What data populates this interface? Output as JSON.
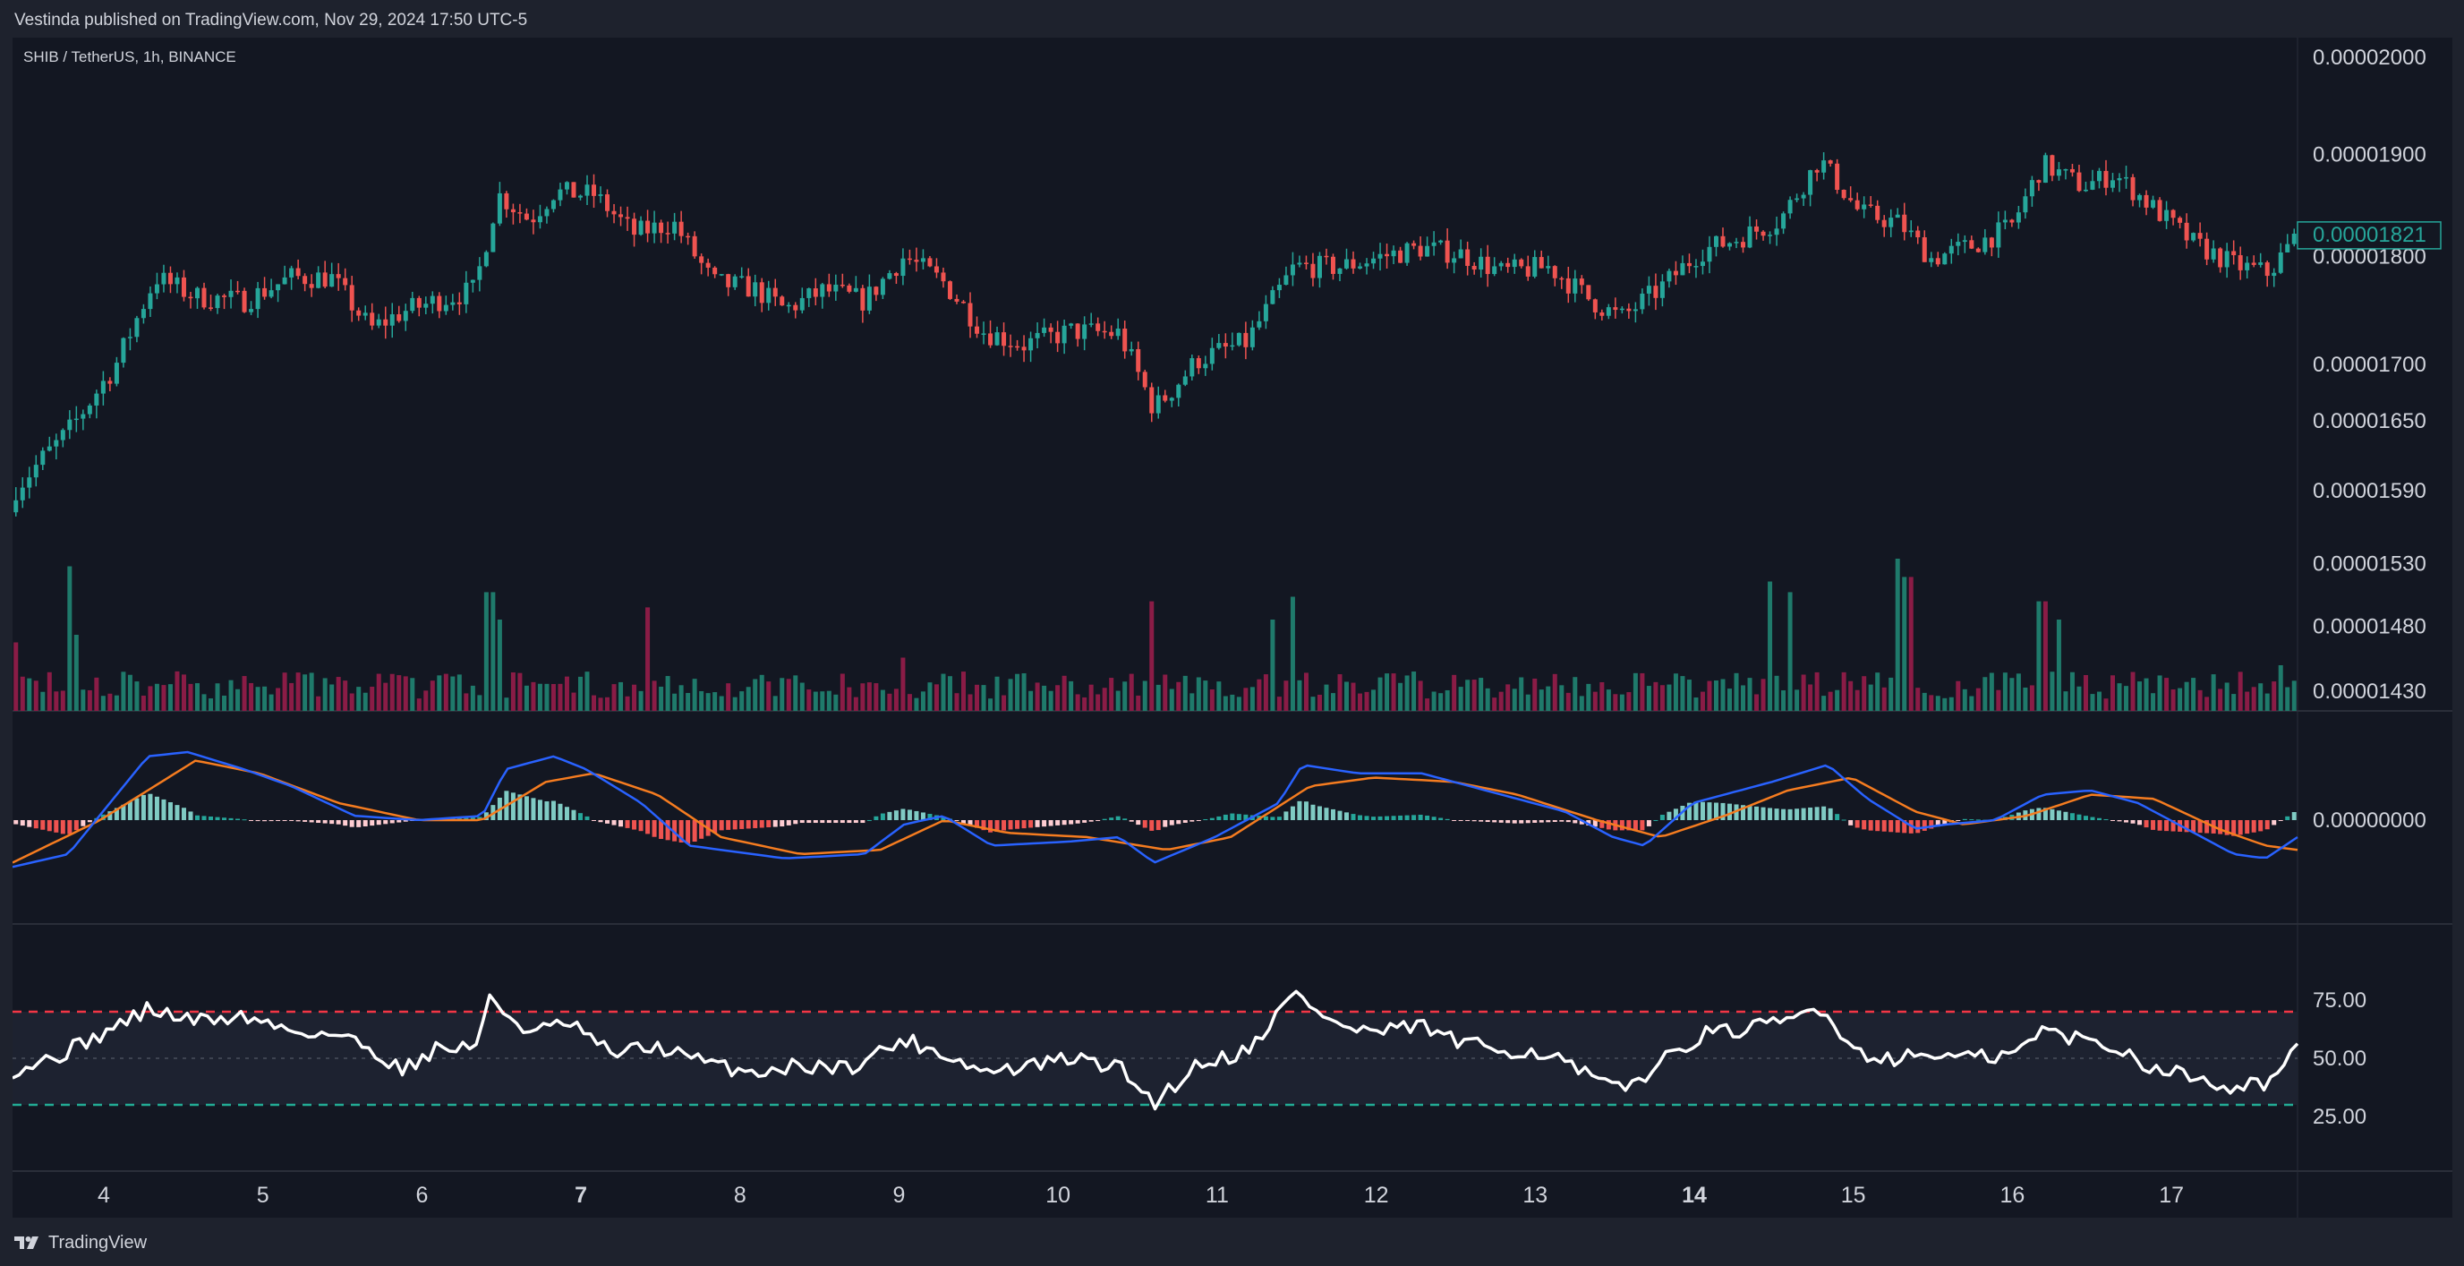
{
  "header": {
    "published": "Vestinda published on TradingView.com, Nov 29, 2024 17:50 UTC-5"
  },
  "symbol_label": "SHIB / TetherUS, 1h, BINANCE",
  "footer": {
    "brand": "TradingView"
  },
  "colors": {
    "up": "#26a69a",
    "down": "#ef5350",
    "vol_up": "#1f7a6b",
    "vol_down": "#8a1c46",
    "macd": "#2962ff",
    "signal": "#f57c20",
    "rsi": "#ffffff",
    "rsi_upper": "#f23645",
    "rsi_lower": "#22ab94"
  },
  "chart_data": [
    {
      "type": "candlestick",
      "x_ticks": [
        {
          "label": "4",
          "bold": false
        },
        {
          "label": "5",
          "bold": false
        },
        {
          "label": "6",
          "bold": false
        },
        {
          "label": "7",
          "bold": true
        },
        {
          "label": "8",
          "bold": false
        },
        {
          "label": "9",
          "bold": false
        },
        {
          "label": "10",
          "bold": false
        },
        {
          "label": "11",
          "bold": false
        },
        {
          "label": "12",
          "bold": false
        },
        {
          "label": "13",
          "bold": false
        },
        {
          "label": "14",
          "bold": true
        },
        {
          "label": "15",
          "bold": false
        },
        {
          "label": "16",
          "bold": false
        },
        {
          "label": "17",
          "bold": false
        }
      ],
      "x_range_days": [
        3.45,
        17.8
      ],
      "price_ticks": [
        {
          "label": "0.00002000",
          "value": 2e-05
        },
        {
          "label": "0.00001900",
          "value": 1.9e-05
        },
        {
          "label": "0.00001800",
          "value": 1.8e-05
        },
        {
          "label": "0.00001700",
          "value": 1.7e-05
        },
        {
          "label": "0.00001650",
          "value": 1.65e-05
        },
        {
          "label": "0.00001590",
          "value": 1.59e-05
        },
        {
          "label": "0.00001530",
          "value": 1.53e-05
        },
        {
          "label": "0.00001480",
          "value": 1.48e-05
        },
        {
          "label": "0.00001430",
          "value": 1.43e-05
        }
      ],
      "last_price": {
        "label": "0.00001821",
        "value": 1.821e-05
      },
      "log_scale": true,
      "trend": [
        [
          3.45,
          1.59
        ],
        [
          3.8,
          1.64
        ],
        [
          4.1,
          1.7
        ],
        [
          4.35,
          1.78
        ],
        [
          4.6,
          1.762
        ],
        [
          4.9,
          1.758
        ],
        [
          5.2,
          1.78
        ],
        [
          5.45,
          1.78
        ],
        [
          5.7,
          1.732
        ],
        [
          5.9,
          1.748
        ],
        [
          6.15,
          1.76
        ],
        [
          6.35,
          1.768
        ],
        [
          6.5,
          1.86
        ],
        [
          6.7,
          1.835
        ],
        [
          6.85,
          1.862
        ],
        [
          7.1,
          1.86
        ],
        [
          7.35,
          1.822
        ],
        [
          7.6,
          1.832
        ],
        [
          7.85,
          1.775
        ],
        [
          8.1,
          1.77
        ],
        [
          8.3,
          1.75
        ],
        [
          8.55,
          1.768
        ],
        [
          8.8,
          1.758
        ],
        [
          9.05,
          1.8
        ],
        [
          9.3,
          1.775
        ],
        [
          9.55,
          1.73
        ],
        [
          9.8,
          1.718
        ],
        [
          10.1,
          1.73
        ],
        [
          10.4,
          1.728
        ],
        [
          10.62,
          1.66
        ],
        [
          10.9,
          1.705
        ],
        [
          11.2,
          1.72
        ],
        [
          11.5,
          1.79
        ],
        [
          11.8,
          1.79
        ],
        [
          12.05,
          1.8
        ],
        [
          12.3,
          1.808
        ],
        [
          12.55,
          1.802
        ],
        [
          12.8,
          1.785
        ],
        [
          13.1,
          1.79
        ],
        [
          13.35,
          1.76
        ],
        [
          13.55,
          1.742
        ],
        [
          13.8,
          1.77
        ],
        [
          14.05,
          1.805
        ],
        [
          14.3,
          1.818
        ],
        [
          14.55,
          1.835
        ],
        [
          14.8,
          1.895
        ],
        [
          15.05,
          1.842
        ],
        [
          15.3,
          1.832
        ],
        [
          15.5,
          1.798
        ],
        [
          15.75,
          1.81
        ],
        [
          16.0,
          1.828
        ],
        [
          16.2,
          1.89
        ],
        [
          16.45,
          1.868
        ],
        [
          16.65,
          1.88
        ],
        [
          16.9,
          1.846
        ],
        [
          17.15,
          1.812
        ],
        [
          17.4,
          1.792
        ],
        [
          17.62,
          1.784
        ],
        [
          17.8,
          1.821
        ]
      ],
      "notes": "price values are x1e-5"
    },
    {
      "type": "bar",
      "name": "volume",
      "spikes": [
        [
          3.45,
          0.45
        ],
        [
          3.8,
          0.95
        ],
        [
          3.85,
          0.5
        ],
        [
          6.45,
          0.78
        ],
        [
          6.5,
          0.6
        ],
        [
          7.45,
          0.68
        ],
        [
          9.05,
          0.35
        ],
        [
          10.6,
          0.72
        ],
        [
          11.35,
          0.6
        ],
        [
          11.5,
          0.75
        ],
        [
          14.5,
          0.85
        ],
        [
          14.6,
          0.78
        ],
        [
          15.3,
          1.0
        ],
        [
          15.35,
          0.88
        ],
        [
          16.2,
          0.72
        ],
        [
          16.3,
          0.6
        ],
        [
          17.7,
          0.3
        ]
      ]
    },
    {
      "type": "line",
      "name": "MACD",
      "y_ticks": [
        {
          "label": "0.00000000",
          "value": 0
        }
      ],
      "macd": [
        [
          3.45,
          -0.55
        ],
        [
          3.8,
          -0.4
        ],
        [
          4.3,
          0.75
        ],
        [
          4.55,
          0.8
        ],
        [
          4.9,
          0.6
        ],
        [
          5.2,
          0.4
        ],
        [
          5.6,
          0.05
        ],
        [
          6.0,
          0.0
        ],
        [
          6.4,
          0.05
        ],
        [
          6.55,
          0.6
        ],
        [
          6.85,
          0.75
        ],
        [
          7.05,
          0.6
        ],
        [
          7.4,
          0.2
        ],
        [
          7.7,
          -0.3
        ],
        [
          8.3,
          -0.45
        ],
        [
          8.8,
          -0.4
        ],
        [
          9.05,
          -0.05
        ],
        [
          9.3,
          0.05
        ],
        [
          9.6,
          -0.3
        ],
        [
          10.1,
          -0.25
        ],
        [
          10.4,
          -0.2
        ],
        [
          10.62,
          -0.5
        ],
        [
          11.0,
          -0.2
        ],
        [
          11.4,
          0.2
        ],
        [
          11.55,
          0.65
        ],
        [
          11.9,
          0.55
        ],
        [
          12.3,
          0.55
        ],
        [
          12.8,
          0.3
        ],
        [
          13.2,
          0.1
        ],
        [
          13.5,
          -0.2
        ],
        [
          13.7,
          -0.3
        ],
        [
          14.0,
          0.2
        ],
        [
          14.5,
          0.45
        ],
        [
          14.85,
          0.65
        ],
        [
          15.1,
          0.25
        ],
        [
          15.4,
          -0.1
        ],
        [
          15.6,
          -0.05
        ],
        [
          15.9,
          0.0
        ],
        [
          16.2,
          0.3
        ],
        [
          16.5,
          0.35
        ],
        [
          16.8,
          0.2
        ],
        [
          17.1,
          -0.1
        ],
        [
          17.4,
          -0.4
        ],
        [
          17.6,
          -0.45
        ],
        [
          17.8,
          -0.2
        ]
      ],
      "signal": [
        [
          3.45,
          -0.5
        ],
        [
          4.0,
          0.0
        ],
        [
          4.6,
          0.7
        ],
        [
          5.0,
          0.55
        ],
        [
          5.5,
          0.2
        ],
        [
          6.0,
          0.0
        ],
        [
          6.4,
          0.0
        ],
        [
          6.8,
          0.45
        ],
        [
          7.1,
          0.55
        ],
        [
          7.5,
          0.3
        ],
        [
          7.9,
          -0.2
        ],
        [
          8.4,
          -0.4
        ],
        [
          8.9,
          -0.35
        ],
        [
          9.3,
          0.0
        ],
        [
          9.7,
          -0.15
        ],
        [
          10.2,
          -0.2
        ],
        [
          10.7,
          -0.35
        ],
        [
          11.1,
          -0.2
        ],
        [
          11.6,
          0.4
        ],
        [
          12.0,
          0.5
        ],
        [
          12.5,
          0.45
        ],
        [
          12.9,
          0.3
        ],
        [
          13.4,
          0.0
        ],
        [
          13.8,
          -0.2
        ],
        [
          14.2,
          0.05
        ],
        [
          14.6,
          0.35
        ],
        [
          15.0,
          0.5
        ],
        [
          15.4,
          0.1
        ],
        [
          15.7,
          -0.05
        ],
        [
          16.1,
          0.05
        ],
        [
          16.5,
          0.3
        ],
        [
          16.9,
          0.25
        ],
        [
          17.3,
          -0.1
        ],
        [
          17.6,
          -0.3
        ],
        [
          17.8,
          -0.35
        ]
      ]
    },
    {
      "type": "line",
      "name": "RSI",
      "y_ticks": [
        {
          "label": "75.00",
          "value": 75
        },
        {
          "label": "50.00",
          "value": 50
        },
        {
          "label": "25.00",
          "value": 25
        }
      ],
      "upper_band": 70,
      "middle_band": 50,
      "lower_band": 30,
      "rsi": [
        [
          3.45,
          45
        ],
        [
          3.7,
          50
        ],
        [
          4.0,
          60
        ],
        [
          4.3,
          71
        ],
        [
          4.6,
          66
        ],
        [
          4.9,
          68
        ],
        [
          5.2,
          62
        ],
        [
          5.5,
          60
        ],
        [
          5.7,
          54
        ],
        [
          5.9,
          45
        ],
        [
          6.1,
          54
        ],
        [
          6.35,
          55
        ],
        [
          6.45,
          75
        ],
        [
          6.7,
          61
        ],
        [
          6.95,
          65
        ],
        [
          7.2,
          52
        ],
        [
          7.5,
          55
        ],
        [
          7.8,
          48
        ],
        [
          8.1,
          44
        ],
        [
          8.4,
          47
        ],
        [
          8.7,
          46
        ],
        [
          9.05,
          58
        ],
        [
          9.3,
          52
        ],
        [
          9.55,
          44
        ],
        [
          9.8,
          46
        ],
        [
          10.1,
          50
        ],
        [
          10.4,
          46
        ],
        [
          10.62,
          31
        ],
        [
          10.9,
          48
        ],
        [
          11.2,
          53
        ],
        [
          11.5,
          78
        ],
        [
          11.8,
          63
        ],
        [
          12.05,
          61
        ],
        [
          12.3,
          64
        ],
        [
          12.55,
          56
        ],
        [
          12.8,
          54
        ],
        [
          13.1,
          52
        ],
        [
          13.35,
          42
        ],
        [
          13.55,
          36
        ],
        [
          13.8,
          48
        ],
        [
          14.05,
          60
        ],
        [
          14.3,
          62
        ],
        [
          14.55,
          65
        ],
        [
          14.8,
          72
        ],
        [
          15.05,
          52
        ],
        [
          15.3,
          50
        ],
        [
          15.5,
          52
        ],
        [
          15.75,
          50
        ],
        [
          16.0,
          51
        ],
        [
          16.2,
          62
        ],
        [
          16.45,
          58
        ],
        [
          16.65,
          55
        ],
        [
          16.9,
          46
        ],
        [
          17.15,
          42
        ],
        [
          17.4,
          38
        ],
        [
          17.62,
          40
        ],
        [
          17.8,
          54
        ]
      ]
    }
  ]
}
